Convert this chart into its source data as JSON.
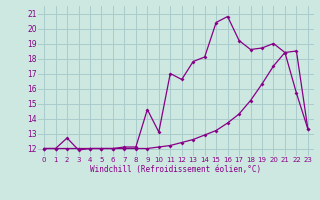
{
  "title": "",
  "xlabel": "Windchill (Refroidissement éolien,°C)",
  "ylabel": "",
  "background_color": "#cce8e0",
  "grid_color": "#aacccc",
  "line_color": "#880088",
  "ylim": [
    11.5,
    21.5
  ],
  "xlim": [
    -0.5,
    23.5
  ],
  "yticks": [
    12,
    13,
    14,
    15,
    16,
    17,
    18,
    19,
    20,
    21
  ],
  "xticks": [
    0,
    1,
    2,
    3,
    4,
    5,
    6,
    7,
    8,
    9,
    10,
    11,
    12,
    13,
    14,
    15,
    16,
    17,
    18,
    19,
    20,
    21,
    22,
    23
  ],
  "series1_x": [
    0,
    1,
    2,
    3,
    4,
    5,
    6,
    7,
    8,
    9,
    10,
    11,
    12,
    13,
    14,
    15,
    16,
    17,
    18,
    19,
    20,
    21,
    22,
    23
  ],
  "series1_y": [
    12.0,
    12.0,
    12.7,
    11.9,
    12.0,
    12.0,
    12.0,
    12.1,
    12.1,
    14.6,
    13.1,
    17.0,
    16.6,
    17.8,
    18.1,
    20.4,
    20.8,
    19.2,
    18.6,
    18.7,
    19.0,
    18.4,
    15.7,
    13.3
  ],
  "series2_x": [
    0,
    1,
    2,
    3,
    4,
    5,
    6,
    7,
    8,
    9,
    10,
    11,
    12,
    13,
    14,
    15,
    16,
    17,
    18,
    19,
    20,
    21,
    22,
    23
  ],
  "series2_y": [
    12.0,
    12.0,
    12.0,
    12.0,
    12.0,
    12.0,
    12.0,
    12.0,
    12.0,
    12.0,
    12.1,
    12.2,
    12.4,
    12.6,
    12.9,
    13.2,
    13.7,
    14.3,
    15.2,
    16.3,
    17.5,
    18.4,
    18.5,
    13.3
  ]
}
